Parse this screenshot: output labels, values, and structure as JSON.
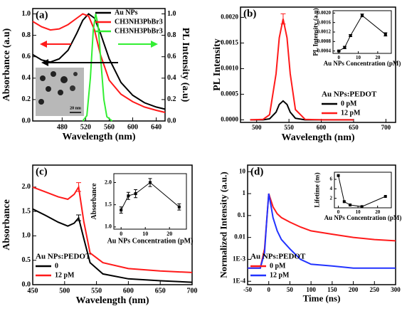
{
  "chart_data": [
    {
      "type": "line",
      "panel": "(a)",
      "xlabel": "Wavelength (nm)",
      "ylabel": "Absorbance (a.u)",
      "y2label": "PL Intensity (a.u)",
      "scale_bar": "20 nm",
      "xlim": [
        430,
        655
      ],
      "xticks": [
        480,
        520,
        560,
        600,
        640
      ],
      "ylim": [
        0,
        1.05
      ],
      "yticks": [
        {
          "value": 0,
          "label": "0.0"
        },
        0.2,
        0.4,
        0.6,
        0.8,
        {
          "value": 1,
          "label": "1.0"
        }
      ],
      "y2lim": [
        0,
        1.05
      ],
      "y2ticks": [
        {
          "value": 0,
          "label": "0.0"
        },
        0.2,
        0.4,
        0.6,
        0.8,
        {
          "value": 1,
          "label": "1.0"
        }
      ],
      "legend": "upper right",
      "x": [
        430,
        445,
        460,
        475,
        490,
        505,
        515,
        525,
        535,
        545,
        560,
        580,
        600,
        620,
        640,
        655
      ],
      "series": [
        {
          "name": "Au NPs",
          "color": "#000000",
          "values": [
            0.62,
            0.57,
            0.55,
            0.58,
            0.66,
            0.82,
            0.94,
            1.0,
            0.96,
            0.82,
            0.58,
            0.36,
            0.24,
            0.17,
            0.13,
            0.11
          ]
        },
        {
          "name": "CH3NH3PbBr3",
          "color": "#ff1a1a",
          "values": [
            0.93,
            0.88,
            0.85,
            0.86,
            0.9,
            0.96,
            1.0,
            0.98,
            0.85,
            0.62,
            0.38,
            0.25,
            0.18,
            0.13,
            0.1,
            0.08
          ]
        },
        {
          "name": "CH3NH3PbBr3",
          "color": "#33ee33",
          "axis": "y2",
          "x": [
            515,
            522,
            528,
            533,
            537,
            541,
            546,
            551,
            556,
            565
          ],
          "values": [
            0,
            0.05,
            0.4,
            0.85,
            1.0,
            0.9,
            0.55,
            0.2,
            0.04,
            0
          ]
        }
      ]
    },
    {
      "type": "line",
      "panel": "(b)",
      "xlabel": "Wavelength (nm)",
      "ylabel": "PL Intensity",
      "xlim": [
        475,
        715
      ],
      "xticks": [
        500,
        550,
        600,
        650,
        700
      ],
      "ylim": [
        -5e-05,
        0.0022
      ],
      "yticks": [
        {
          "value": 0,
          "label": "0.0000"
        },
        0.0005,
        {
          "value": 0.001,
          "label": "0.0010"
        },
        0.0015,
        {
          "value": 0.002,
          "label": "0.0020"
        }
      ],
      "legend": "lower right",
      "legend_title": "Au NPs:PEDOT",
      "x": [
        490,
        510,
        520,
        530,
        535,
        541,
        547,
        552,
        560,
        575,
        600,
        650
      ],
      "series": [
        {
          "name": "0 pM",
          "color": "#000000",
          "values": [
            0,
            0,
            2e-05,
            0.00015,
            0.0003,
            0.00037,
            0.0003,
            0.00015,
            3e-05,
            0,
            0,
            0
          ]
        },
        {
          "name": "12 pM",
          "color": "#ff1a1a",
          "values": [
            0,
            1e-05,
            0.0001,
            0.0009,
            0.0016,
            0.00197,
            0.0016,
            0.0009,
            0.0002,
            1e-05,
            0,
            0
          ],
          "errors": [
            null,
            null,
            null,
            null,
            null,
            0.0001,
            null,
            null,
            null,
            null,
            null,
            null
          ]
        }
      ]
    },
    {
      "type": "line",
      "panel": "(c)",
      "xlabel": "Wavelength (nm)",
      "ylabel": "Absorbance",
      "xlim": [
        450,
        700
      ],
      "xticks": [
        450,
        500,
        550,
        600,
        650,
        700
      ],
      "ylim": [
        0,
        2.45
      ],
      "yticks": [
        {
          "value": 0,
          "label": "0.0"
        },
        0.5,
        {
          "value": 1,
          "label": "1.0"
        },
        1.5,
        {
          "value": 2,
          "label": "2.0"
        }
      ],
      "legend": "lower left",
      "legend_title": "Au NPs:PEDOT",
      "x": [
        450,
        470,
        490,
        505,
        515,
        522,
        530,
        540,
        560,
        600,
        650,
        700
      ],
      "series": [
        {
          "name": "0",
          "color": "#000000",
          "values": [
            1.55,
            1.42,
            1.28,
            1.2,
            1.26,
            1.37,
            0.95,
            0.45,
            0.22,
            0.12,
            0.08,
            0.05
          ],
          "errors": [
            null,
            null,
            null,
            null,
            null,
            0.06,
            null,
            null,
            null,
            null,
            null,
            null
          ]
        },
        {
          "name": "12 pM",
          "color": "#ff1a1a",
          "values": [
            2.0,
            1.9,
            1.8,
            1.75,
            1.85,
            2.0,
            1.3,
            0.65,
            0.45,
            0.33,
            0.28,
            0.25
          ],
          "errors": [
            null,
            null,
            null,
            null,
            null,
            0.09,
            null,
            null,
            null,
            null,
            null,
            null
          ]
        }
      ]
    },
    {
      "type": "line",
      "panel": "(d)",
      "xlabel": "Time (ns)",
      "ylabel": "Normalized Intensity (a.u.)",
      "yscale": "log",
      "xlim": [
        -50,
        300
      ],
      "xticks": [
        -50,
        0,
        50,
        100,
        150,
        200,
        250,
        300
      ],
      "ylim": [
        7e-05,
        20
      ],
      "yticks": [
        {
          "value": 0.0001,
          "label": "1E-4"
        },
        {
          "value": 0.001,
          "label": "1E-3"
        },
        0.01,
        0.1,
        1,
        10
      ],
      "legend": "lower left",
      "legend_title": "Au NPs:PEDOT",
      "x": [
        -50,
        -20,
        -10,
        -5,
        0,
        5,
        10,
        20,
        30,
        50,
        75,
        100,
        150,
        200,
        250,
        300
      ],
      "series": [
        {
          "name": "0 pM",
          "color": "#ff1a1a",
          "values": [
            0.0004,
            0.0004,
            0.003,
            0.05,
            1,
            0.5,
            0.25,
            0.12,
            0.08,
            0.05,
            0.03,
            0.02,
            0.014,
            0.01,
            0.008,
            0.007
          ]
        },
        {
          "name": "12 pM",
          "color": "#2233ff",
          "values": [
            0.0004,
            0.0004,
            0.002,
            0.05,
            1,
            0.3,
            0.08,
            0.02,
            0.008,
            0.003,
            0.001,
            0.0006,
            0.0005,
            0.0004,
            0.0004,
            0.0004
          ]
        }
      ]
    },
    {
      "type": "line",
      "marker": "square",
      "xlabel": "Au NPs Concentration (pM)",
      "ylabel": "PL Intensity (a.u)",
      "xlim": [
        -3,
        27
      ],
      "xticks": [
        0,
        10,
        20
      ],
      "ylim": [
        0.0003,
        0.0021
      ],
      "yticks": [
        0.0004,
        0.0008,
        0.0012,
        0.0016,
        {
          "value": 0.002,
          "label": "0.0020"
        }
      ],
      "x": [
        0,
        3,
        6,
        12,
        24
      ],
      "series": [
        {
          "color": "#000000",
          "values": [
            0.0004,
            0.00055,
            0.00105,
            0.0019,
            0.0011
          ],
          "errors": [
            3e-05,
            5e-05,
            4e-05,
            6e-05,
            7e-05
          ]
        }
      ]
    },
    {
      "type": "line",
      "marker": "square",
      "xlabel": "Au NPs Concentration (pM)",
      "ylabel": "Absorbance",
      "xlim": [
        -3,
        27
      ],
      "xticks": [
        0,
        10,
        20
      ],
      "ylim": [
        0.95,
        2.2
      ],
      "yticks": [
        {
          "value": 1,
          "label": "1.0"
        },
        1.5,
        {
          "value": 2,
          "label": "2.0"
        }
      ],
      "x": [
        0,
        3,
        6,
        12,
        24
      ],
      "series": [
        {
          "color": "#000000",
          "values": [
            1.38,
            1.7,
            1.75,
            2.0,
            1.45
          ],
          "errors": [
            0.07,
            0.08,
            0.09,
            0.09,
            0.07
          ]
        }
      ]
    },
    {
      "type": "line",
      "marker": "square",
      "xlabel": "Au NPs Concentration (pM)",
      "ylabel": "Lifetime (ns)",
      "xlim": [
        -2,
        27
      ],
      "xticks": [
        0,
        10,
        20
      ],
      "ylim": [
        0,
        7.5
      ],
      "yticks": [
        2,
        4,
        6
      ],
      "x": [
        0,
        3,
        6,
        12,
        24
      ],
      "series": [
        {
          "color": "#000000",
          "values": [
            6.8,
            1.3,
            0.6,
            0.25,
            2.4
          ]
        }
      ]
    }
  ]
}
